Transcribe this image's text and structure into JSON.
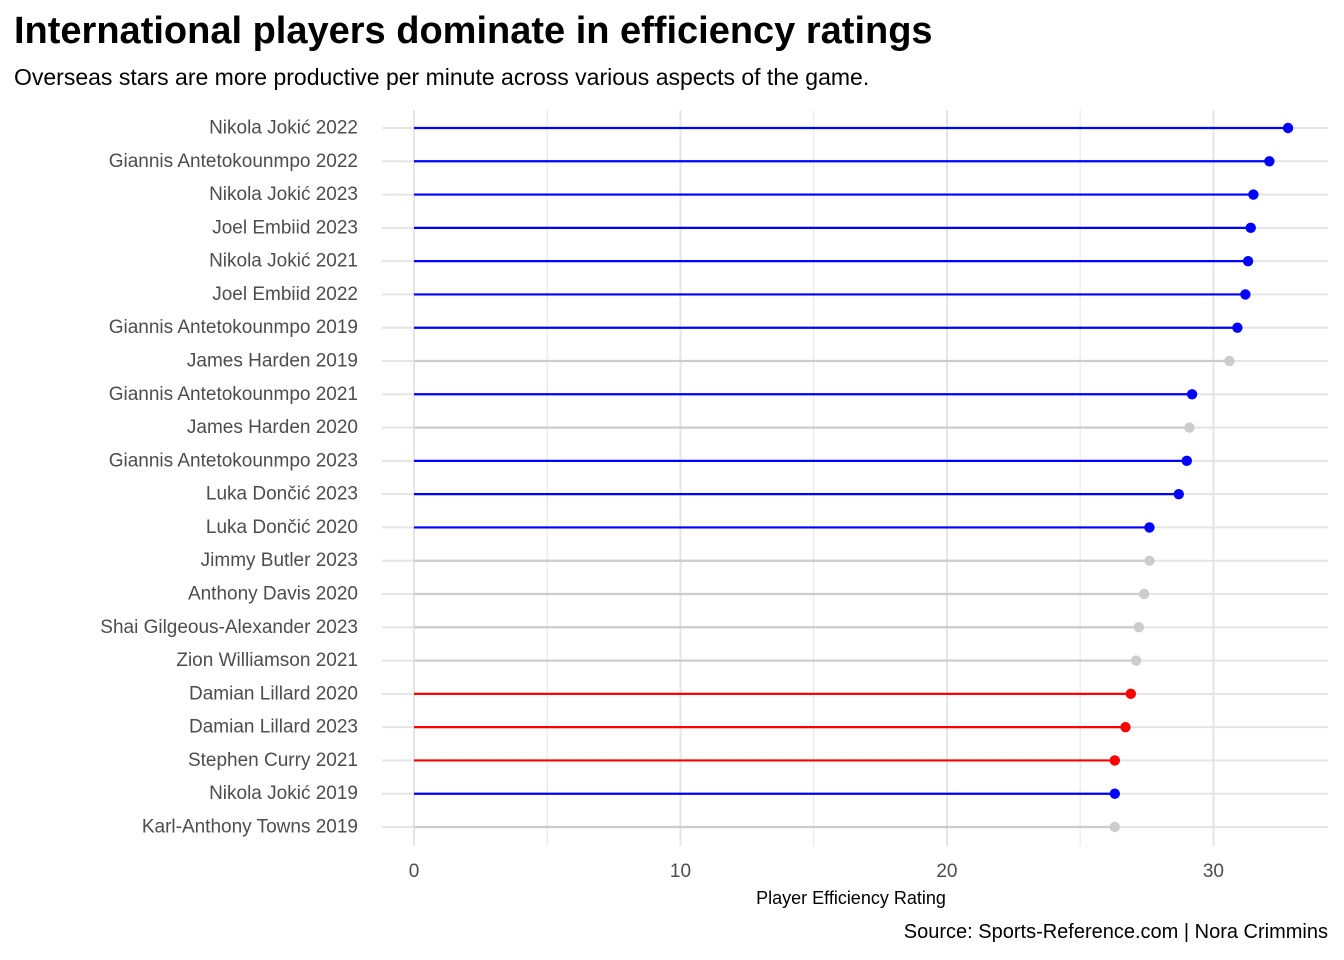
{
  "header": {
    "title": "International players dominate in efficiency ratings",
    "subtitle": "Overseas stars are more productive per minute across various aspects of the game."
  },
  "caption": "Source: Sports-Reference.com | Nora Crimmins",
  "colors": {
    "international": "#0000ff",
    "highlight": "#ff0000",
    "other": "#cccccc",
    "grid": "#e5e5e5",
    "text": "#4d4d4d"
  },
  "chart_data": {
    "type": "lollipop",
    "title": "International players dominate in efficiency ratings",
    "subtitle": "Overseas stars are more productive per minute across various aspects of the game.",
    "xlabel": "Player Efficiency Rating",
    "ylabel": "",
    "xlim": [
      -1.2,
      34.3
    ],
    "xticks": [
      0,
      10,
      20,
      30
    ],
    "grid": true,
    "legend": "none",
    "categories": [
      "Nikola Jokić 2022",
      "Giannis Antetokounmpo 2022",
      "Nikola Jokić 2023",
      "Joel Embiid 2023",
      "Nikola Jokić 2021",
      "Joel Embiid 2022",
      "Giannis Antetokounmpo 2019",
      "James Harden 2019",
      "Giannis Antetokounmpo 2021",
      "James Harden 2020",
      "Giannis Antetokounmpo 2023",
      "Luka Dončić 2023",
      "Luka Dončić 2020",
      "Jimmy Butler 2023",
      "Anthony Davis 2020",
      "Shai Gilgeous-Alexander 2023",
      "Zion Williamson 2021",
      "Damian Lillard 2020",
      "Damian Lillard 2023",
      "Stephen Curry 2021",
      "Nikola Jokić 2019",
      "Karl-Anthony Towns 2019"
    ],
    "values": [
      32.8,
      32.1,
      31.5,
      31.4,
      31.3,
      31.2,
      30.9,
      30.6,
      29.2,
      29.1,
      29.0,
      28.7,
      27.6,
      27.6,
      27.4,
      27.2,
      27.1,
      26.9,
      26.7,
      26.3,
      26.3,
      26.3
    ],
    "groups": [
      "international",
      "international",
      "international",
      "international",
      "international",
      "international",
      "international",
      "other",
      "international",
      "other",
      "international",
      "international",
      "international",
      "other",
      "other",
      "other",
      "other",
      "highlight",
      "highlight",
      "highlight",
      "international",
      "other"
    ]
  }
}
